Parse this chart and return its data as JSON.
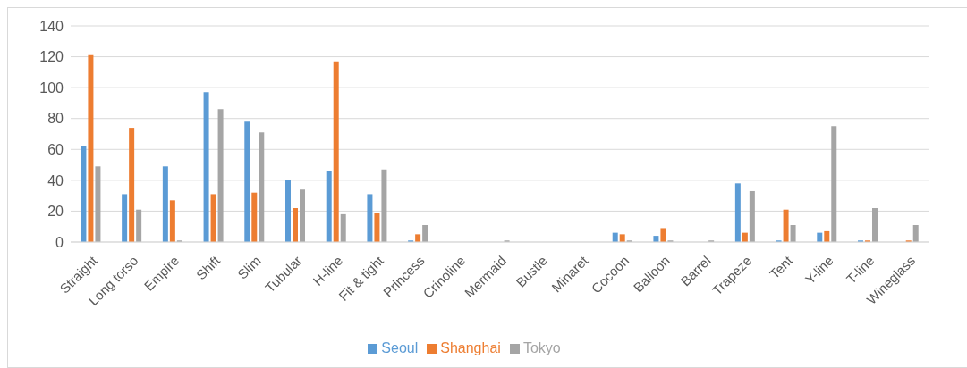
{
  "chart_data": {
    "type": "bar",
    "categories": [
      "Straight",
      "Long torso",
      "Empire",
      "Shift",
      "Slim",
      "Tubular",
      "H-line",
      "Fit & tight",
      "Princess",
      "Crinoline",
      "Mermaid",
      "Bustle",
      "Minaret",
      "Cocoon",
      "Balloon",
      "Barrel",
      "Trapeze",
      "Tent",
      "Y-line",
      "T-line",
      "Wineglass"
    ],
    "series": [
      {
        "name": "Seoul",
        "color": "#5b9bd5",
        "values": [
          62,
          31,
          49,
          97,
          78,
          40,
          46,
          31,
          1,
          0,
          0,
          0,
          0,
          6,
          4,
          0,
          38,
          1,
          6,
          1,
          0
        ]
      },
      {
        "name": "Shanghai",
        "color": "#ed7d31",
        "values": [
          121,
          74,
          27,
          31,
          32,
          22,
          117,
          19,
          5,
          0,
          0,
          0,
          0,
          5,
          9,
          0,
          6,
          21,
          7,
          1,
          1
        ]
      },
      {
        "name": "Tokyo",
        "color": "#a5a5a5",
        "values": [
          49,
          21,
          1,
          86,
          71,
          34,
          18,
          47,
          11,
          0,
          1,
          0,
          0,
          1,
          1,
          1,
          33,
          11,
          75,
          22,
          11
        ]
      }
    ],
    "ylim": [
      0,
      140
    ],
    "yticks": [
      0,
      20,
      40,
      60,
      80,
      100,
      120,
      140
    ],
    "grid": "y",
    "legend": "bottom"
  }
}
